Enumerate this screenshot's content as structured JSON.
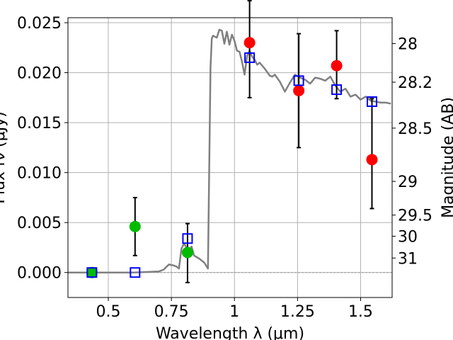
{
  "chart_data": {
    "type": "scatter",
    "xlabel": "Wavelength  λ (μm)",
    "ylabel_left": "Flux fν (μJy)",
    "ylabel_right": "Magnitude (AB)",
    "xlim": [
      0.34,
      1.625
    ],
    "ylim": [
      -0.0025,
      0.0255
    ],
    "x_ticks": [
      0.5,
      0.75,
      1.0,
      1.25,
      1.5
    ],
    "x_tick_labels": [
      "0.5",
      "0.75",
      "1",
      "1.25",
      "1.5"
    ],
    "y_ticks": [
      0.0,
      0.005,
      0.01,
      0.015,
      0.02,
      0.025
    ],
    "y_tick_labels": [
      "0.000",
      "0.005",
      "0.010",
      "0.015",
      "0.020",
      "0.025"
    ],
    "right_ticks": [
      {
        "label": "28",
        "flux": 0.02291
      },
      {
        "label": "28.2",
        "flux": 0.01905
      },
      {
        "label": "28.5",
        "flux": 0.01445
      },
      {
        "label": "29",
        "flux": 0.00912
      },
      {
        "label": "29.5",
        "flux": 0.00575
      },
      {
        "label": "30",
        "flux": 0.00363
      },
      {
        "label": "31",
        "flux": 0.00145
      }
    ],
    "grid": true,
    "colors": {
      "model": "#808080",
      "model_photometry": "#0000ff",
      "detections": "#ff0000",
      "other_detections": "#00bb00",
      "errorbar": "#000000"
    },
    "series": [
      {
        "kind": "model_spectrum",
        "x": [
          0.34,
          0.45,
          0.6,
          0.7,
          0.72,
          0.74,
          0.76,
          0.77,
          0.78,
          0.79,
          0.8,
          0.81,
          0.82,
          0.83,
          0.84,
          0.86,
          0.88,
          0.895,
          0.9,
          0.905,
          0.91,
          0.915,
          0.93,
          0.94,
          0.95,
          0.96,
          0.97,
          0.98,
          0.99,
          1.0,
          1.01,
          1.02,
          1.03,
          1.04,
          1.05,
          1.06,
          1.07,
          1.08,
          1.09,
          1.1,
          1.12,
          1.14,
          1.15,
          1.16,
          1.18,
          1.2,
          1.22,
          1.24,
          1.26,
          1.28,
          1.3,
          1.32,
          1.34,
          1.36,
          1.38,
          1.4,
          1.42,
          1.44,
          1.46,
          1.48,
          1.5,
          1.52,
          1.54,
          1.56,
          1.58,
          1.6,
          1.62
        ],
        "y": [
          0.0,
          0.0,
          0.0,
          0.0001,
          0.0003,
          0.0008,
          0.0007,
          0.0006,
          0.0004,
          0.0024,
          0.0029,
          0.0025,
          0.0022,
          0.0026,
          0.0017,
          0.0014,
          0.001,
          0.0004,
          0.0105,
          0.0205,
          0.0234,
          0.0237,
          0.0235,
          0.0243,
          0.0242,
          0.0229,
          0.0241,
          0.0228,
          0.0238,
          0.0232,
          0.0222,
          0.0221,
          0.0211,
          0.0198,
          0.0217,
          0.0222,
          0.0216,
          0.0213,
          0.0208,
          0.021,
          0.0204,
          0.0197,
          0.0196,
          0.0198,
          0.0191,
          0.0181,
          0.019,
          0.0198,
          0.0195,
          0.0193,
          0.0189,
          0.0195,
          0.0194,
          0.0192,
          0.0196,
          0.0187,
          0.0181,
          0.0184,
          0.0176,
          0.0178,
          0.0173,
          0.0176,
          0.0172,
          0.0171,
          0.017,
          0.017,
          0.0169
        ]
      },
      {
        "kind": "model_photometry",
        "x": [
          0.435,
          0.606,
          0.814,
          1.06,
          1.255,
          1.405,
          1.545
        ],
        "y": [
          0.0,
          0.0,
          0.0034,
          0.0215,
          0.0192,
          0.0183,
          0.0171
        ]
      },
      {
        "kind": "detections",
        "x": [
          1.06,
          1.255,
          1.405,
          1.545
        ],
        "y": [
          0.023,
          0.0182,
          0.0207,
          0.0113
        ],
        "yerr_low": [
          0.0055,
          0.0057,
          0.0033,
          0.0049
        ],
        "yerr_high": [
          0.0042,
          0.0057,
          0.0035,
          0.0061
        ]
      },
      {
        "kind": "other_detections",
        "x": [
          0.435,
          0.606,
          0.814
        ],
        "y": [
          0.0,
          0.0046,
          0.002
        ],
        "yerr_low": [
          0.0,
          0.0029,
          0.003
        ],
        "yerr_high": [
          0.0,
          0.0029,
          0.0029
        ]
      }
    ]
  }
}
